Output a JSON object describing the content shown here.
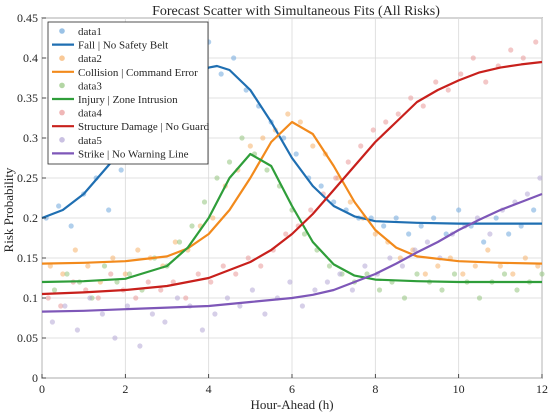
{
  "chart_data": {
    "type": "scatter",
    "title": "Forecast Scatter with Simultaneous Fits (All Risks)",
    "xlabel": "Hour-Ahead (h)",
    "ylabel": "Risk Probability",
    "xlim": [
      0,
      12
    ],
    "ylim": [
      0,
      0.45
    ],
    "xticks": [
      0,
      2,
      4,
      6,
      8,
      10,
      12
    ],
    "yticks": [
      0,
      0.05,
      0.1,
      0.15,
      0.2,
      0.25,
      0.3,
      0.35,
      0.4,
      0.45
    ],
    "grid": true,
    "legend_position": "top-left",
    "series": [
      {
        "name": "data1",
        "kind": "scatter",
        "color": "#6fa8dc",
        "x": [
          0.1,
          0.4,
          0.7,
          1.0,
          1.3,
          1.6,
          1.9,
          2.2,
          2.5,
          2.8,
          3.1,
          3.4,
          3.7,
          4.0,
          4.3,
          4.6,
          4.9,
          5.2,
          5.5,
          5.8,
          6.1,
          6.4,
          6.7,
          7.0,
          7.3,
          7.6,
          7.9,
          8.2,
          8.5,
          8.8,
          9.1,
          9.4,
          9.7,
          10.0,
          10.3,
          10.6,
          10.9,
          11.2,
          11.5,
          11.8
        ],
        "y": [
          0.2,
          0.215,
          0.19,
          0.23,
          0.25,
          0.21,
          0.26,
          0.28,
          0.3,
          0.33,
          0.35,
          0.37,
          0.4,
          0.42,
          0.38,
          0.4,
          0.36,
          0.34,
          0.32,
          0.3,
          0.28,
          0.25,
          0.24,
          0.22,
          0.21,
          0.2,
          0.2,
          0.19,
          0.2,
          0.18,
          0.19,
          0.2,
          0.18,
          0.21,
          0.19,
          0.17,
          0.2,
          0.18,
          0.19,
          0.21
        ]
      },
      {
        "name": "data2",
        "kind": "scatter",
        "color": "#f6b26b",
        "x": [
          0.2,
          0.5,
          0.8,
          1.1,
          1.4,
          1.7,
          2.0,
          2.3,
          2.6,
          2.9,
          3.2,
          3.5,
          3.8,
          4.1,
          4.4,
          4.7,
          5.0,
          5.3,
          5.6,
          5.9,
          6.2,
          6.5,
          6.8,
          7.1,
          7.4,
          7.7,
          8.0,
          8.3,
          8.6,
          8.9,
          9.2,
          9.5,
          9.8,
          10.1,
          10.4,
          10.7,
          11.0,
          11.3,
          11.6,
          11.9
        ],
        "y": [
          0.14,
          0.13,
          0.16,
          0.14,
          0.12,
          0.15,
          0.13,
          0.16,
          0.15,
          0.14,
          0.17,
          0.16,
          0.19,
          0.2,
          0.24,
          0.26,
          0.29,
          0.3,
          0.31,
          0.33,
          0.32,
          0.29,
          0.28,
          0.25,
          0.22,
          0.2,
          0.18,
          0.17,
          0.15,
          0.16,
          0.13,
          0.14,
          0.15,
          0.13,
          0.14,
          0.16,
          0.14,
          0.13,
          0.15,
          0.14
        ]
      },
      {
        "name": "data3",
        "kind": "scatter",
        "color": "#93c47d",
        "x": [
          0.3,
          0.6,
          0.9,
          1.2,
          1.5,
          1.8,
          2.1,
          2.4,
          2.7,
          3.0,
          3.3,
          3.6,
          3.9,
          4.2,
          4.5,
          4.8,
          5.1,
          5.4,
          5.7,
          6.0,
          6.3,
          6.6,
          6.9,
          7.2,
          7.5,
          7.8,
          8.1,
          8.4,
          8.7,
          9.0,
          9.3,
          9.6,
          9.9,
          10.2,
          10.5,
          10.8,
          11.1,
          11.4,
          11.7,
          12.0
        ],
        "y": [
          0.11,
          0.13,
          0.12,
          0.1,
          0.14,
          0.12,
          0.13,
          0.11,
          0.15,
          0.14,
          0.17,
          0.19,
          0.22,
          0.25,
          0.27,
          0.3,
          0.28,
          0.26,
          0.24,
          0.21,
          0.18,
          0.16,
          0.14,
          0.13,
          0.12,
          0.13,
          0.11,
          0.12,
          0.1,
          0.13,
          0.12,
          0.11,
          0.13,
          0.12,
          0.1,
          0.12,
          0.13,
          0.11,
          0.12,
          0.13
        ]
      },
      {
        "name": "data4",
        "kind": "scatter",
        "color": "#ea9999",
        "x": [
          0.15,
          0.45,
          0.75,
          1.05,
          1.35,
          1.65,
          1.95,
          2.25,
          2.55,
          2.85,
          3.15,
          3.45,
          3.75,
          4.05,
          4.35,
          4.65,
          4.95,
          5.25,
          5.55,
          5.85,
          6.15,
          6.45,
          6.75,
          7.05,
          7.35,
          7.65,
          7.95,
          8.25,
          8.55,
          8.85,
          9.15,
          9.45,
          9.75,
          10.05,
          10.35,
          10.65,
          10.95,
          11.25,
          11.55,
          11.85
        ],
        "y": [
          0.1,
          0.09,
          0.12,
          0.11,
          0.1,
          0.13,
          0.11,
          0.1,
          0.12,
          0.11,
          0.12,
          0.1,
          0.13,
          0.12,
          0.14,
          0.13,
          0.15,
          0.14,
          0.16,
          0.18,
          0.19,
          0.21,
          0.23,
          0.25,
          0.27,
          0.29,
          0.31,
          0.32,
          0.33,
          0.35,
          0.34,
          0.37,
          0.36,
          0.38,
          0.4,
          0.37,
          0.39,
          0.41,
          0.4,
          0.42
        ]
      },
      {
        "name": "data5",
        "kind": "scatter",
        "color": "#b4a7d6",
        "x": [
          0.25,
          0.55,
          0.85,
          1.15,
          1.45,
          1.75,
          2.05,
          2.35,
          2.65,
          2.95,
          3.25,
          3.55,
          3.85,
          4.15,
          4.45,
          4.75,
          5.05,
          5.35,
          5.65,
          5.95,
          6.25,
          6.55,
          6.85,
          7.15,
          7.45,
          7.75,
          8.05,
          8.35,
          8.65,
          8.95,
          9.25,
          9.55,
          9.85,
          10.15,
          10.45,
          10.75,
          11.05,
          11.35,
          11.65,
          11.95
        ],
        "y": [
          0.07,
          0.09,
          0.06,
          0.1,
          0.08,
          0.05,
          0.09,
          0.04,
          0.08,
          0.07,
          0.1,
          0.09,
          0.06,
          0.08,
          0.1,
          0.09,
          0.11,
          0.08,
          0.1,
          0.12,
          0.09,
          0.11,
          0.12,
          0.13,
          0.11,
          0.14,
          0.13,
          0.15,
          0.14,
          0.16,
          0.17,
          0.15,
          0.18,
          0.19,
          0.2,
          0.18,
          0.21,
          0.22,
          0.23,
          0.25
        ]
      },
      {
        "name": "Fall | No Safety Belt",
        "kind": "line",
        "color": "#1f6fb2",
        "x": [
          0,
          0.5,
          1,
          1.5,
          2,
          2.5,
          3,
          3.5,
          4,
          4.2,
          4.5,
          5,
          5.5,
          6,
          6.5,
          7,
          7.5,
          8,
          9,
          10,
          11,
          12
        ],
        "y": [
          0.2,
          0.21,
          0.23,
          0.26,
          0.29,
          0.32,
          0.35,
          0.375,
          0.388,
          0.39,
          0.385,
          0.36,
          0.32,
          0.275,
          0.24,
          0.215,
          0.202,
          0.196,
          0.194,
          0.193,
          0.193,
          0.193
        ]
      },
      {
        "name": "Collision | Command Error",
        "kind": "line",
        "color": "#f28a1c",
        "x": [
          0,
          1,
          2,
          3,
          3.5,
          4,
          4.5,
          5,
          5.5,
          6,
          6.5,
          7,
          7.5,
          8,
          8.5,
          9,
          10,
          11,
          12
        ],
        "y": [
          0.143,
          0.144,
          0.146,
          0.152,
          0.162,
          0.18,
          0.21,
          0.25,
          0.295,
          0.32,
          0.305,
          0.265,
          0.22,
          0.185,
          0.163,
          0.152,
          0.146,
          0.144,
          0.143
        ]
      },
      {
        "name": "Injury | Zone Intrusion",
        "kind": "line",
        "color": "#2f9e3a",
        "x": [
          0,
          1,
          2,
          3,
          3.5,
          4,
          4.5,
          5,
          5.5,
          6,
          6.5,
          7,
          7.5,
          8,
          9,
          10,
          11,
          12
        ],
        "y": [
          0.12,
          0.121,
          0.124,
          0.14,
          0.163,
          0.2,
          0.25,
          0.28,
          0.265,
          0.215,
          0.17,
          0.142,
          0.128,
          0.123,
          0.121,
          0.12,
          0.12,
          0.12
        ]
      },
      {
        "name": "Structure Damage | No Guard",
        "kind": "line",
        "color": "#c8201c",
        "x": [
          0,
          1,
          2,
          3,
          4,
          5,
          5.5,
          6,
          6.5,
          7,
          7.5,
          8,
          8.5,
          9,
          9.5,
          10,
          10.5,
          11,
          11.5,
          12
        ],
        "y": [
          0.105,
          0.107,
          0.11,
          0.115,
          0.125,
          0.145,
          0.16,
          0.18,
          0.205,
          0.235,
          0.265,
          0.295,
          0.32,
          0.345,
          0.36,
          0.372,
          0.382,
          0.388,
          0.392,
          0.395
        ]
      },
      {
        "name": "Strike | No Warning Line",
        "kind": "line",
        "color": "#7e57b8",
        "x": [
          0,
          1,
          2,
          3,
          4,
          5,
          6,
          6.5,
          7,
          7.5,
          8,
          8.5,
          9,
          9.5,
          10,
          10.5,
          11,
          11.5,
          12
        ],
        "y": [
          0.083,
          0.084,
          0.086,
          0.088,
          0.09,
          0.095,
          0.1,
          0.104,
          0.11,
          0.12,
          0.13,
          0.143,
          0.157,
          0.17,
          0.185,
          0.198,
          0.21,
          0.22,
          0.23
        ]
      }
    ]
  }
}
